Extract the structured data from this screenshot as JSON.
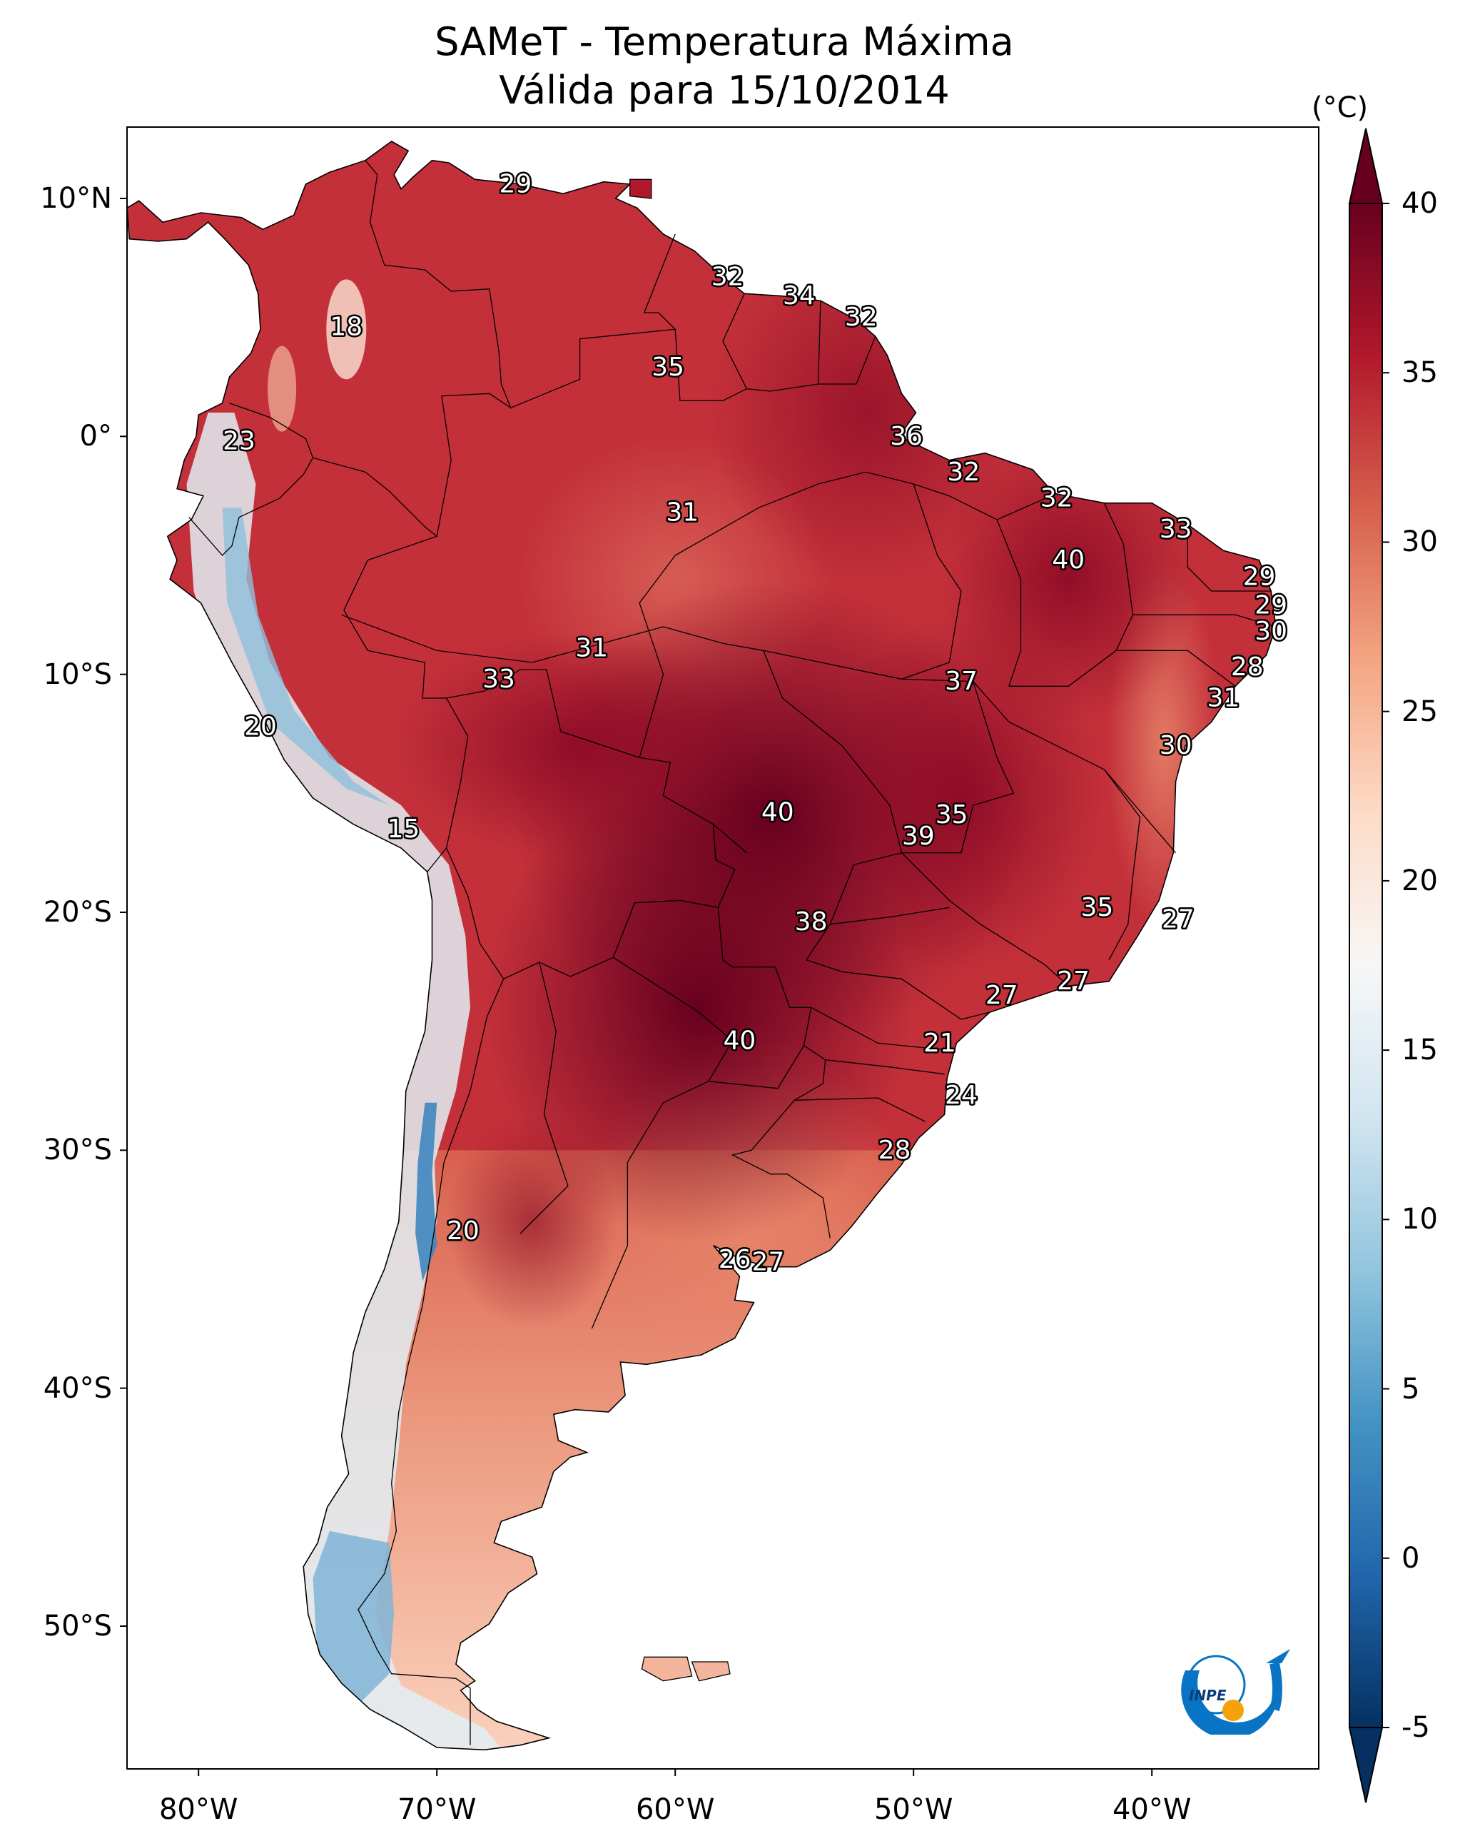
{
  "title": {
    "line1": "SAMeT - Temperatura Máxima",
    "line2": "Válida para 15/10/2014"
  },
  "axes": {
    "y_ticks": [
      {
        "deg": 10,
        "label": "10°N"
      },
      {
        "deg": 0,
        "label": "0°"
      },
      {
        "deg": -10,
        "label": "10°S"
      },
      {
        "deg": -20,
        "label": "20°S"
      },
      {
        "deg": -30,
        "label": "30°S"
      },
      {
        "deg": -40,
        "label": "40°S"
      },
      {
        "deg": -50,
        "label": "50°S"
      }
    ],
    "x_ticks": [
      {
        "deg": -80,
        "label": "80°W"
      },
      {
        "deg": -70,
        "label": "70°W"
      },
      {
        "deg": -60,
        "label": "60°W"
      },
      {
        "deg": -50,
        "label": "50°W"
      },
      {
        "deg": -40,
        "label": "40°W"
      }
    ],
    "lon_range": [
      -83,
      -33
    ],
    "lat_range": [
      -56,
      13
    ]
  },
  "colorbar": {
    "unit": "(°C)",
    "ticks": [
      "40",
      "35",
      "30",
      "25",
      "20",
      "15",
      "10",
      "5",
      "0",
      "-5"
    ],
    "range": [
      -5,
      40
    ],
    "colors": [
      "#053061",
      "#2166ac",
      "#4393c3",
      "#92c5de",
      "#d1e5f0",
      "#f7f7f7",
      "#fddbc7",
      "#f4a582",
      "#d6604d",
      "#b2182b",
      "#67001f"
    ]
  },
  "map_labels": [
    {
      "lon": -66.7,
      "lat": 10.6,
      "value": "29"
    },
    {
      "lon": -57.8,
      "lat": 6.7,
      "value": "32"
    },
    {
      "lon": -54.8,
      "lat": 5.9,
      "value": "34"
    },
    {
      "lon": -52.2,
      "lat": 5.0,
      "value": "32"
    },
    {
      "lon": -73.8,
      "lat": 4.6,
      "value": "18"
    },
    {
      "lon": -60.3,
      "lat": 2.9,
      "value": "35"
    },
    {
      "lon": -50.3,
      "lat": 0.0,
      "value": "36"
    },
    {
      "lon": -78.3,
      "lat": -0.2,
      "value": "23"
    },
    {
      "lon": -47.9,
      "lat": -1.5,
      "value": "32"
    },
    {
      "lon": -44.0,
      "lat": -2.6,
      "value": "32"
    },
    {
      "lon": -59.7,
      "lat": -3.2,
      "value": "31"
    },
    {
      "lon": -39.0,
      "lat": -3.9,
      "value": "33"
    },
    {
      "lon": -43.5,
      "lat": -5.2,
      "value": "40"
    },
    {
      "lon": -35.5,
      "lat": -5.9,
      "value": "29"
    },
    {
      "lon": -35.0,
      "lat": -7.1,
      "value": "29"
    },
    {
      "lon": -35.0,
      "lat": -8.2,
      "value": "30"
    },
    {
      "lon": -63.5,
      "lat": -8.9,
      "value": "31"
    },
    {
      "lon": -36.0,
      "lat": -9.7,
      "value": "28"
    },
    {
      "lon": -67.4,
      "lat": -10.2,
      "value": "33"
    },
    {
      "lon": -48.0,
      "lat": -10.3,
      "value": "37"
    },
    {
      "lon": -37.0,
      "lat": -11.0,
      "value": "31"
    },
    {
      "lon": -77.4,
      "lat": -12.2,
      "value": "20"
    },
    {
      "lon": -39.0,
      "lat": -13.0,
      "value": "30"
    },
    {
      "lon": -55.7,
      "lat": -15.8,
      "value": "40"
    },
    {
      "lon": -48.4,
      "lat": -15.9,
      "value": "35"
    },
    {
      "lon": -49.8,
      "lat": -16.8,
      "value": "39"
    },
    {
      "lon": -71.4,
      "lat": -16.5,
      "value": "15"
    },
    {
      "lon": -42.3,
      "lat": -19.8,
      "value": "35"
    },
    {
      "lon": -38.9,
      "lat": -20.3,
      "value": "27"
    },
    {
      "lon": -54.3,
      "lat": -20.4,
      "value": "38"
    },
    {
      "lon": -43.3,
      "lat": -22.9,
      "value": "27"
    },
    {
      "lon": -46.3,
      "lat": -23.5,
      "value": "27"
    },
    {
      "lon": -57.3,
      "lat": -25.4,
      "value": "40"
    },
    {
      "lon": -48.9,
      "lat": -25.5,
      "value": "21"
    },
    {
      "lon": -48.0,
      "lat": -27.7,
      "value": "24"
    },
    {
      "lon": -50.8,
      "lat": -30.0,
      "value": "28"
    },
    {
      "lon": -68.9,
      "lat": -33.4,
      "value": "20"
    },
    {
      "lon": -57.5,
      "lat": -34.6,
      "value": "26"
    },
    {
      "lon": -56.1,
      "lat": -34.7,
      "value": "27"
    }
  ],
  "logo": {
    "text": "INPE"
  }
}
